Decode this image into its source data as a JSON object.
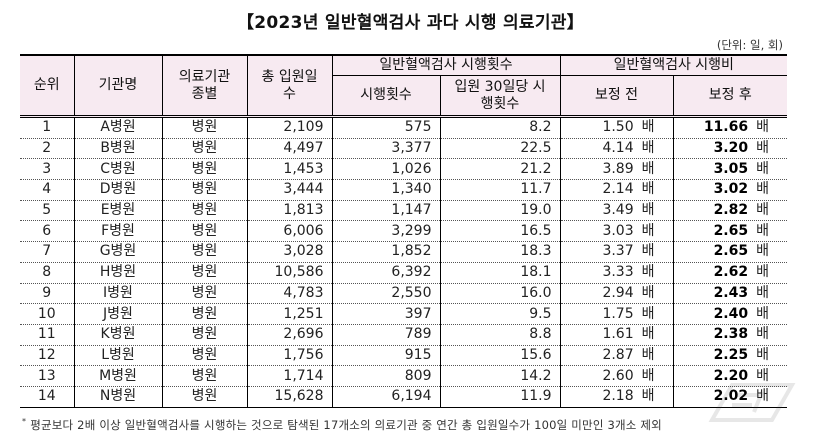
{
  "title": "【2023년 일반혈액검사 과다 시행 의료기관】",
  "unit": "(단위: 일, 회)",
  "table": {
    "headers": {
      "rank": "순위",
      "name": "기관명",
      "type": "의료기관 종별",
      "total_days": "총 입원일수",
      "group_count": "일반혈액검사 시행횟수",
      "count": "시행횟수",
      "per30": "입원 30일당 시행횟수",
      "group_cost": "일반혈액검사 시행비",
      "before": "보정 전",
      "after": "보정 후"
    },
    "ratio_unit": "배",
    "rows": [
      {
        "rank": "1",
        "name": "A병원",
        "type": "병원",
        "total_days": "2,109",
        "count": "575",
        "per30": "8.2",
        "before": "1.50",
        "after": "11.66"
      },
      {
        "rank": "2",
        "name": "B병원",
        "type": "병원",
        "total_days": "4,497",
        "count": "3,377",
        "per30": "22.5",
        "before": "4.14",
        "after": "3.20"
      },
      {
        "rank": "3",
        "name": "C병원",
        "type": "병원",
        "total_days": "1,453",
        "count": "1,026",
        "per30": "21.2",
        "before": "3.89",
        "after": "3.05"
      },
      {
        "rank": "4",
        "name": "D병원",
        "type": "병원",
        "total_days": "3,444",
        "count": "1,340",
        "per30": "11.7",
        "before": "2.14",
        "after": "3.02"
      },
      {
        "rank": "5",
        "name": "E병원",
        "type": "병원",
        "total_days": "1,813",
        "count": "1,147",
        "per30": "19.0",
        "before": "3.49",
        "after": "2.82"
      },
      {
        "rank": "6",
        "name": "F병원",
        "type": "병원",
        "total_days": "6,006",
        "count": "3,299",
        "per30": "16.5",
        "before": "3.03",
        "after": "2.65"
      },
      {
        "rank": "7",
        "name": "G병원",
        "type": "병원",
        "total_days": "3,028",
        "count": "1,852",
        "per30": "18.3",
        "before": "3.37",
        "after": "2.65"
      },
      {
        "rank": "8",
        "name": "H병원",
        "type": "병원",
        "total_days": "10,586",
        "count": "6,392",
        "per30": "18.1",
        "before": "3.33",
        "after": "2.62"
      },
      {
        "rank": "9",
        "name": "I병원",
        "type": "병원",
        "total_days": "4,783",
        "count": "2,550",
        "per30": "16.0",
        "before": "2.94",
        "after": "2.43"
      },
      {
        "rank": "10",
        "name": "J병원",
        "type": "병원",
        "total_days": "1,251",
        "count": "397",
        "per30": "9.5",
        "before": "1.75",
        "after": "2.40"
      },
      {
        "rank": "11",
        "name": "K병원",
        "type": "병원",
        "total_days": "2,696",
        "count": "789",
        "per30": "8.8",
        "before": "1.61",
        "after": "2.38"
      },
      {
        "rank": "12",
        "name": "L병원",
        "type": "병원",
        "total_days": "1,756",
        "count": "915",
        "per30": "15.6",
        "before": "2.87",
        "after": "2.25"
      },
      {
        "rank": "13",
        "name": "M병원",
        "type": "병원",
        "total_days": "1,714",
        "count": "809",
        "per30": "14.2",
        "before": "2.60",
        "after": "2.20"
      },
      {
        "rank": "14",
        "name": "N병원",
        "type": "병원",
        "total_days": "15,628",
        "count": "6,194",
        "per30": "11.9",
        "before": "2.18",
        "after": "2.02"
      }
    ]
  },
  "footnote": {
    "marker": "*",
    "text": "평균보다 2배 이상 일반혈액검사를 시행하는 것으로 탐색된 17개소의 의료기관 중 연간 총 입원일수가 100일 미만인 3개소 제외"
  },
  "colors": {
    "header_bg": "#F7EAF1",
    "border": "#000000"
  }
}
